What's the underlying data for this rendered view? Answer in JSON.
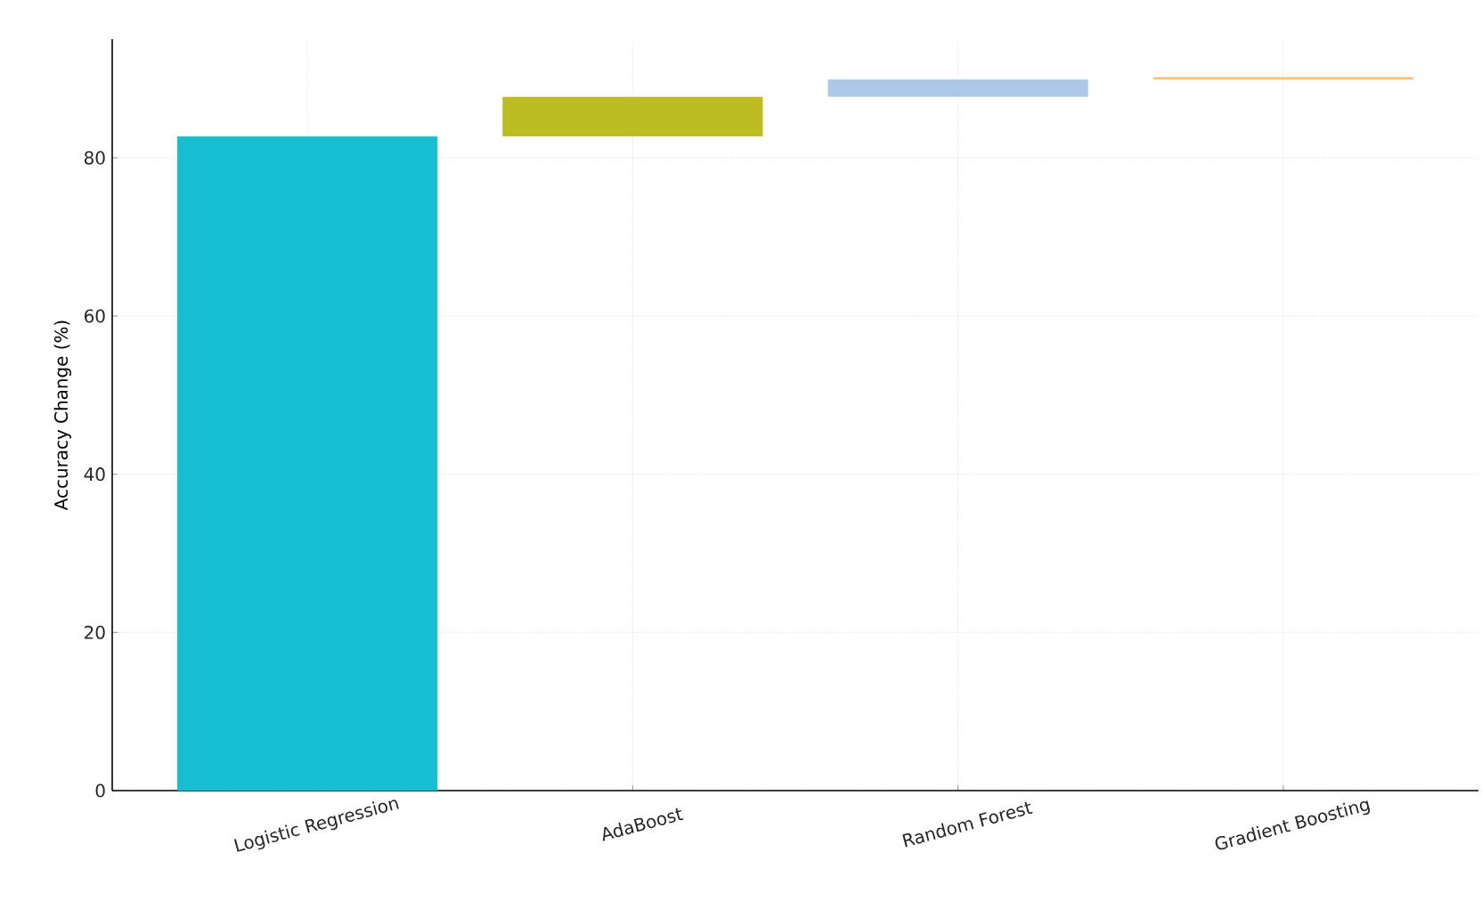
{
  "chart_data": {
    "type": "bar",
    "ylabel": "Accuracy Change (%)",
    "categories": [
      "Logistic Regression",
      "AdaBoost",
      "Random Forest",
      "Gradient Boosting"
    ],
    "values": [
      82.7,
      5.0,
      2.2,
      0.3
    ],
    "base": [
      0,
      82.7,
      87.7,
      89.9
    ],
    "colors": [
      "#17becf",
      "#bcbd22",
      "#aec7e8",
      "#ffbb78"
    ],
    "ylim": [
      0,
      95
    ],
    "yticks": [
      0,
      20,
      40,
      60,
      80
    ],
    "grid": true
  }
}
